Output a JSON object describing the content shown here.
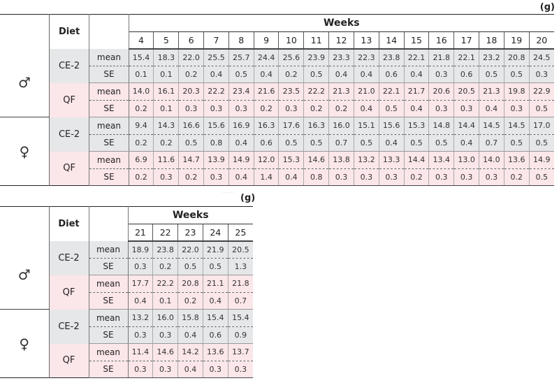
{
  "unit_label": "(g)",
  "faint_mark": "......",
  "header": {
    "diet": "Diet",
    "weeks": "Weeks"
  },
  "stats": [
    "mean",
    "SE"
  ],
  "tables": [
    {
      "weeks": [
        "4",
        "5",
        "6",
        "7",
        "8",
        "9",
        "10",
        "11",
        "12",
        "13",
        "14",
        "15",
        "16",
        "17",
        "18",
        "19",
        "20"
      ],
      "groups": [
        {
          "sex": "♂",
          "rows": [
            {
              "diet": "CE-2",
              "tone": "g",
              "mean": [
                "15.4",
                "18.3",
                "22.0",
                "25.5",
                "25.7",
                "24.4",
                "25.6",
                "23.9",
                "23.3",
                "22.3",
                "23.8",
                "22.1",
                "21.8",
                "22.1",
                "23.2",
                "20.8",
                "24.5"
              ],
              "se": [
                "0.1",
                "0.1",
                "0.2",
                "0.4",
                "0.5",
                "0.4",
                "0.2",
                "0.5",
                "0.4",
                "0.4",
                "0.6",
                "0.4",
                "0.3",
                "0.6",
                "0.5",
                "0.5",
                "0.3"
              ]
            },
            {
              "diet": "QF",
              "tone": "p",
              "mean": [
                "14.0",
                "16.1",
                "20.3",
                "22.2",
                "23.4",
                "21.6",
                "23.5",
                "22.2",
                "21.3",
                "21.0",
                "22.1",
                "21.7",
                "20.6",
                "20.5",
                "21.3",
                "19.8",
                "22.9"
              ],
              "se": [
                "0.2",
                "0.1",
                "0.3",
                "0.3",
                "0.3",
                "0.2",
                "0.3",
                "0.2",
                "0.2",
                "0.4",
                "0.5",
                "0.4",
                "0.3",
                "0.3",
                "0.4",
                "0.3",
                "0.5"
              ]
            }
          ]
        },
        {
          "sex": "♀",
          "rows": [
            {
              "diet": "CE-2",
              "tone": "g",
              "mean": [
                "9.4",
                "14.3",
                "16.6",
                "15.6",
                "16.9",
                "16.3",
                "17.6",
                "16.3",
                "16.0",
                "15.1",
                "15.6",
                "15.3",
                "14.8",
                "14.4",
                "14.5",
                "14.5",
                "17.0"
              ],
              "se": [
                "0.2",
                "0.2",
                "0.5",
                "0.8",
                "0.4",
                "0.6",
                "0.5",
                "0.5",
                "0.7",
                "0.5",
                "0.4",
                "0.5",
                "0.5",
                "0.4",
                "0.7",
                "0.5",
                "0.5"
              ]
            },
            {
              "diet": "QF",
              "tone": "p",
              "mean": [
                "6.9",
                "11.6",
                "14.7",
                "13.9",
                "14.9",
                "12.0",
                "15.3",
                "14.6",
                "13.8",
                "13.2",
                "13.3",
                "14.4",
                "13.4",
                "13.0",
                "14.0",
                "13.6",
                "14.9"
              ],
              "se": [
                "0.2",
                "0.3",
                "0.2",
                "0.3",
                "0.4",
                "1.4",
                "0.4",
                "0.8",
                "0.3",
                "0.3",
                "0.3",
                "0.2",
                "0.3",
                "0.3",
                "0.3",
                "0.2",
                "0.5"
              ]
            }
          ]
        }
      ]
    },
    {
      "weeks": [
        "21",
        "22",
        "23",
        "24",
        "25"
      ],
      "groups": [
        {
          "sex": "♂",
          "rows": [
            {
              "diet": "CE-2",
              "tone": "g",
              "mean": [
                "18.9",
                "23.8",
                "22.0",
                "21.9",
                "20.5"
              ],
              "se": [
                "0.3",
                "0.2",
                "0.5",
                "0.5",
                "1.3"
              ]
            },
            {
              "diet": "QF",
              "tone": "p",
              "mean": [
                "17.7",
                "22.2",
                "20.8",
                "21.1",
                "21.8"
              ],
              "se": [
                "0.4",
                "0.1",
                "0.2",
                "0.4",
                "0.7"
              ]
            }
          ]
        },
        {
          "sex": "♀",
          "rows": [
            {
              "diet": "CE-2",
              "tone": "g",
              "mean": [
                "13.2",
                "16.0",
                "15.8",
                "15.4",
                "15.4"
              ],
              "se": [
                "0.3",
                "0.3",
                "0.4",
                "0.6",
                "0.9"
              ]
            },
            {
              "diet": "QF",
              "tone": "p",
              "mean": [
                "11.4",
                "14.6",
                "14.2",
                "13.6",
                "13.7"
              ],
              "se": [
                "0.3",
                "0.3",
                "0.4",
                "0.3",
                "0.3"
              ]
            }
          ]
        }
      ]
    }
  ]
}
